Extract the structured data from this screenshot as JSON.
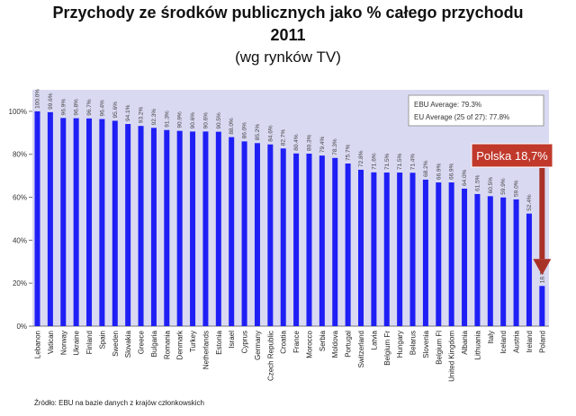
{
  "title": {
    "line1": "Przychody ze środków publicznych jako % całego przychodu",
    "line2": "2011",
    "line3": "(wg rynków TV)"
  },
  "legend": {
    "ebu_average": "EBU Average: 79.3%",
    "eu_average": "EU Average (25 of 27): 77.8%"
  },
  "callout": {
    "label": "Polska 18,7%"
  },
  "source": "Źródło: EBU na bazie danych z krajów członkowskich",
  "colors": {
    "bar": "#1f1ff5",
    "plot_background": "#d9d9f2",
    "callout": "#c0392b",
    "arrow": "#a93226"
  },
  "chart_data": {
    "type": "bar",
    "categories": [
      "Lebanon",
      "Vatican",
      "Norway",
      "Ukraine",
      "Finland",
      "Spain",
      "Sweden",
      "Slovakia",
      "Greece",
      "Bulgaria",
      "Romania",
      "Denmark",
      "Turkey",
      "Netherlands",
      "Estonia",
      "Israel",
      "Cyprus",
      "Germany",
      "Czech Republic",
      "Croatia",
      "France",
      "Morocco",
      "Serbia",
      "Moldova",
      "Portugal",
      "Switzerland",
      "Latvia",
      "Belgium Fr",
      "Hungary",
      "Belarus",
      "Slovenia",
      "Belgium Fl",
      "United Kingdom",
      "Albania",
      "Lithuania",
      "Italy",
      "Iceland",
      "Austria",
      "Ireland",
      "Poland"
    ],
    "values": [
      100.0,
      99.6,
      96.9,
      96.8,
      96.7,
      96.4,
      95.6,
      94.1,
      93.2,
      92.3,
      91.3,
      90.9,
      90.6,
      90.6,
      90.5,
      88.0,
      86.0,
      85.2,
      84.6,
      82.7,
      80.4,
      80.3,
      79.4,
      78.3,
      75.7,
      72.8,
      71.6,
      71.5,
      71.5,
      71.4,
      68.2,
      66.9,
      66.9,
      64.0,
      61.5,
      60.5,
      59.9,
      59.0,
      52.4,
      18.7
    ],
    "data_labels": [
      "100.0%",
      "99.6%",
      "96.9%",
      "96.8%",
      "96.7%",
      "96.4%",
      "95.6%",
      "94.1%",
      "93.2%",
      "92.3%",
      "91.3%",
      "90.9%",
      "90.6%",
      "90.6%",
      "90.5%",
      "88.0%",
      "86.0%",
      "85.2%",
      "84.6%",
      "82.7%",
      "80.4%",
      "80.3%",
      "79.4%",
      "78.3%",
      "75.7%",
      "72.8%",
      "71.6%",
      "71.5%",
      "71.5%",
      "71.4%",
      "68.2%",
      "66.9%",
      "66.9%",
      "64.0%",
      "61.5%",
      "60.5%",
      "59.9%",
      "59.0%",
      "52.4%",
      "18.7%"
    ],
    "yticks": [
      "0%",
      "20%",
      "40%",
      "60%",
      "80%",
      "100%"
    ],
    "ylim": [
      0,
      110
    ],
    "grid": false
  }
}
